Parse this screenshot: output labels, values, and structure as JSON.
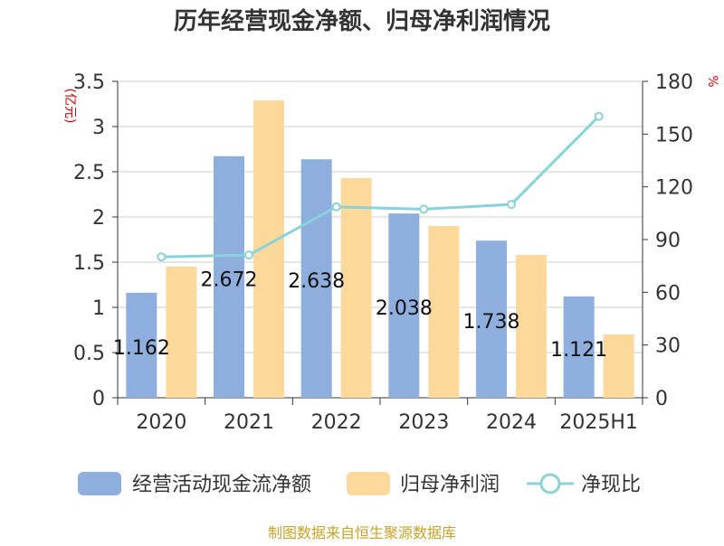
{
  "chart_data": {
    "type": "bar",
    "title": "历年经营现金净额、归母净利润情况",
    "categories": [
      "2020",
      "2021",
      "2022",
      "2023",
      "2024",
      "2025H1"
    ],
    "y_left": {
      "unit": "(亿元)",
      "ylim": [
        0,
        3.5
      ],
      "ticks": [
        "0",
        "0.5",
        "1",
        "1.5",
        "2",
        "2.5",
        "3",
        "3.5"
      ]
    },
    "y_right": {
      "unit": "%",
      "ylim": [
        0,
        180
      ],
      "ticks": [
        "0",
        "30",
        "60",
        "90",
        "120",
        "150",
        "180"
      ]
    },
    "series": [
      {
        "name": "经营活动现金流净额",
        "type": "bar",
        "axis": "left",
        "color": "#8eaedd",
        "values": [
          1.162,
          2.672,
          2.638,
          2.038,
          1.738,
          1.121
        ],
        "labels": [
          "1.162",
          "2.672",
          "2.638",
          "2.038",
          "1.738",
          "1.121"
        ]
      },
      {
        "name": "归母净利润",
        "type": "bar",
        "axis": "left",
        "color": "#fdd89b",
        "values": [
          1.45,
          3.29,
          2.43,
          1.9,
          1.58,
          0.7
        ]
      },
      {
        "name": "净现比",
        "type": "line",
        "axis": "right",
        "color": "#87d3d9",
        "values": [
          80.1,
          81.2,
          108.6,
          107.3,
          110.0,
          160.1
        ]
      }
    ],
    "grid": true,
    "legend_position": "bottom"
  },
  "footer": {
    "source": "制图数据来自恒生聚源数据库"
  }
}
